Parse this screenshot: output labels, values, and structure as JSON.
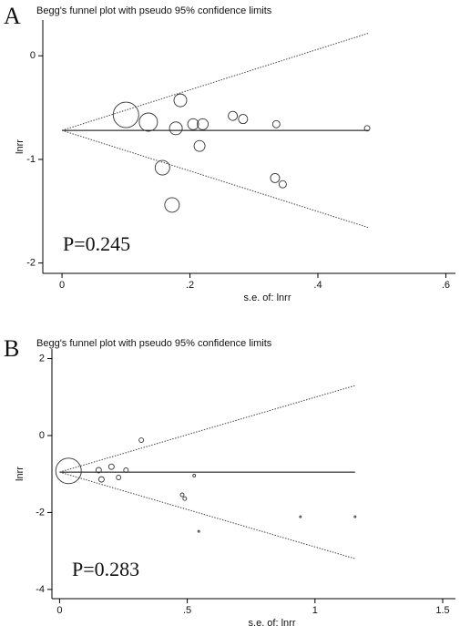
{
  "chart_data": [
    {
      "type": "scatter",
      "panel": "A",
      "title": "Begg's funnel plot with pseudo 95% confidence limits",
      "x_label": "s.e. of: lnrr",
      "y_label": "lnrr",
      "annotation": "P=0.245",
      "x": [
        0.1,
        0.135,
        0.185,
        0.178,
        0.205,
        0.22,
        0.215,
        0.157,
        0.172,
        0.267,
        0.283,
        0.335,
        0.333,
        0.345,
        0.477
      ],
      "values": [
        -0.57,
        -0.64,
        -0.43,
        -0.7,
        -0.66,
        -0.66,
        -0.87,
        -1.08,
        -1.44,
        -0.58,
        -0.61,
        -0.66,
        -1.18,
        -1.24,
        -0.7
      ],
      "sizes": [
        14,
        10,
        7,
        7,
        6,
        6,
        6,
        8,
        8,
        5,
        5,
        4,
        5,
        4,
        3
      ],
      "funnel": {
        "pooled": -0.72,
        "se_max": 0.48,
        "upper": 0.22,
        "lower": -1.66
      },
      "xlim": [
        -0.03,
        0.615
      ],
      "ylim": [
        -2.1,
        0.345
      ],
      "xticks": [
        0,
        {
          "value": 0.2,
          "label": ".2"
        },
        {
          "value": 0.4,
          "label": ".4"
        },
        {
          "value": 0.6,
          "label": ".6"
        }
      ],
      "yticks": [
        0,
        -1,
        -2
      ]
    },
    {
      "type": "scatter",
      "panel": "B",
      "title": "Begg's funnel plot with pseudo 95% confidence limits",
      "x_label": "s.e. of: lnrr",
      "y_label": "lnrr",
      "annotation": "P=0.283",
      "x": [
        0.035,
        0.153,
        0.164,
        0.203,
        0.231,
        0.26,
        0.32,
        0.48,
        0.49,
        0.527,
        0.545,
        0.943,
        1.157
      ],
      "values": [
        -0.92,
        -0.9,
        -1.14,
        -0.81,
        -1.09,
        -0.9,
        -0.12,
        -1.54,
        -1.64,
        -1.04,
        -2.49,
        -2.11,
        -2.11
      ],
      "sizes": [
        14,
        3,
        3,
        3,
        2.5,
        2.5,
        2.5,
        2,
        2,
        1.5,
        1,
        1,
        1
      ],
      "funnel": {
        "pooled": -0.95,
        "se_max": 1.157,
        "upper": 1.3,
        "lower": -3.2
      },
      "xlim": [
        -0.03,
        1.55
      ],
      "ylim": [
        -4.24,
        2.25
      ],
      "xticks": [
        0,
        {
          "value": 0.5,
          "label": ".5"
        },
        1,
        1.5
      ],
      "yticks": [
        2,
        0,
        -2,
        -4
      ]
    }
  ]
}
